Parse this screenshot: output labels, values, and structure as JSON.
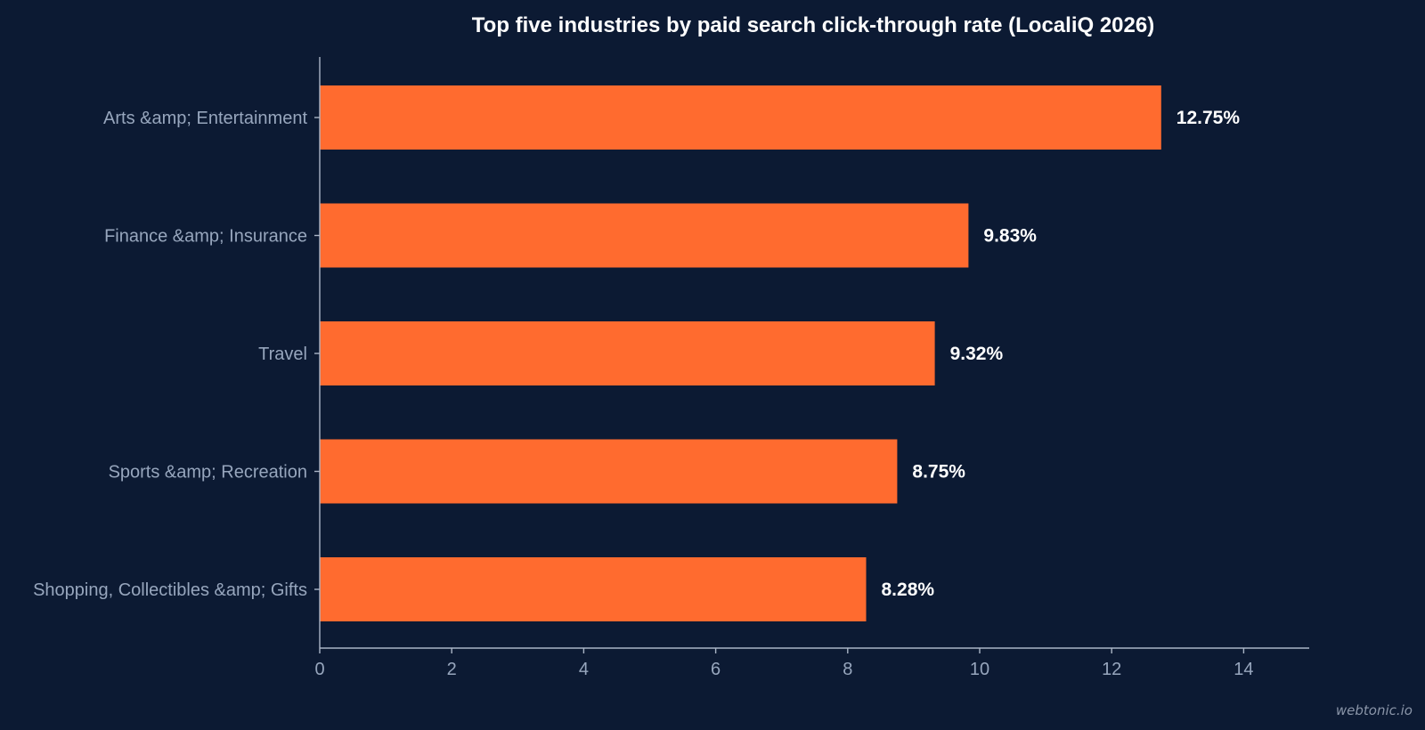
{
  "colors": {
    "background": "#0c1a33",
    "bar": "#ff6b2f",
    "axis": "#aab5c6",
    "label_text": "#97a6bd",
    "value_text": "#ffffff"
  },
  "watermark": "webtonic.io",
  "chart_data": {
    "type": "bar",
    "orientation": "horizontal",
    "title": "Top five industries by paid search click-through rate (LocaliQ 2026)",
    "xlabel": "",
    "ylabel": "",
    "categories": [
      "Arts &amp; Entertainment",
      "Finance &amp; Insurance",
      "Travel",
      "Sports &amp; Recreation",
      "Shopping, Collectibles &amp; Gifts"
    ],
    "values": [
      12.75,
      9.83,
      9.32,
      8.75,
      8.28
    ],
    "value_labels": [
      "12.75%",
      "9.83%",
      "9.32%",
      "8.75%",
      "8.28%"
    ],
    "xlim": [
      0,
      15
    ],
    "xticks": [
      0,
      2,
      4,
      6,
      8,
      10,
      12,
      14
    ],
    "xtick_labels": [
      "0",
      "2",
      "4",
      "6",
      "8",
      "10",
      "12",
      "14"
    ],
    "grid": false,
    "legend": "none"
  }
}
